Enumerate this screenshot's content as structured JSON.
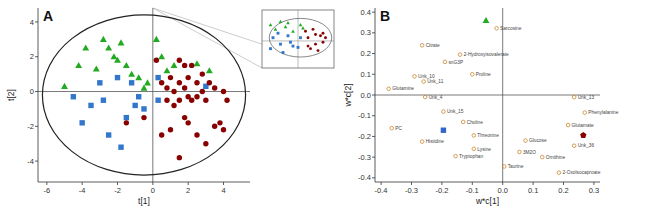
{
  "chart_data": [
    {
      "type": "scatter",
      "title": "A",
      "xlabel": "t[1]",
      "ylabel": "t[2]",
      "xlim": [
        -6.5,
        5.5
      ],
      "ylim": [
        -5.2,
        4.8
      ],
      "xticks": [
        -6,
        -4,
        -2,
        0,
        2,
        4
      ],
      "yticks": [
        -4,
        -2,
        0,
        2,
        4
      ],
      "series": [
        {
          "color": "#22aa22",
          "marker": "triangle",
          "x": [
            -5.0,
            -4.2,
            -3.8,
            -3.2,
            -2.8,
            -2.5,
            -2.2,
            -2.0,
            -1.8,
            -1.5,
            -1.2,
            -0.8,
            -0.5,
            -0.3,
            0.2,
            0.5,
            0.8,
            1.2,
            2.5,
            3.2
          ],
          "values": [
            0.3,
            1.5,
            2.5,
            1.3,
            3.0,
            2.5,
            2.0,
            1.8,
            2.8,
            1.5,
            1.0,
            0.8,
            0.2,
            0.5,
            3.0,
            2.0,
            1.2,
            1.5,
            1.6,
            1.2
          ]
        },
        {
          "color": "#3377cc",
          "marker": "square",
          "x": [
            -4.5,
            -4.0,
            -3.5,
            -3.0,
            -2.8,
            -2.5,
            -2.0,
            -1.8,
            -1.5,
            -1.2,
            -1.0,
            -0.8,
            -0.5,
            0.3,
            0.3,
            3.0
          ],
          "values": [
            -0.3,
            -1.8,
            -0.8,
            0.5,
            -0.5,
            -2.5,
            0.8,
            -3.2,
            -1.5,
            0.5,
            -0.8,
            -0.3,
            -1.0,
            0.8,
            -0.5,
            0.3
          ]
        },
        {
          "color": "#880000",
          "marker": "circle",
          "x": [
            0.2,
            0.5,
            0.8,
            0.8,
            1.0,
            1.2,
            1.2,
            1.5,
            1.5,
            1.5,
            1.8,
            1.8,
            1.8,
            2.0,
            2.0,
            2.2,
            2.2,
            2.5,
            2.5,
            2.8,
            2.8,
            3.0,
            3.2,
            3.5,
            3.8,
            4.0,
            4.2,
            0.5,
            1.0,
            1.5,
            2.0,
            2.5,
            3.0,
            3.5,
            4.0,
            -1.5,
            -0.5
          ],
          "values": [
            1.8,
            0.5,
            0.2,
            -0.5,
            0.8,
            -0.8,
            0.0,
            1.8,
            0.5,
            -0.5,
            1.5,
            0.2,
            -1.5,
            0.8,
            -0.3,
            1.5,
            -0.5,
            0.5,
            -0.3,
            1.0,
            0.0,
            -0.5,
            0.5,
            0.2,
            -1.8,
            0.0,
            -0.5,
            -2.5,
            -2.2,
            -3.8,
            -1.8,
            -2.5,
            -3.0,
            -2.0,
            -2.2,
            -1.8,
            -1.5
          ]
        }
      ],
      "ellipse": {
        "center": [
          -0.5,
          -0.2
        ],
        "width": 11.5,
        "height": 9.2
      }
    },
    {
      "type": "scatter",
      "tick_labels": false,
      "xlim": [
        -0.72,
        0.72
      ],
      "ylim": [
        -0.42,
        0.48
      ],
      "series": [
        {
          "color": "#22aa22",
          "marker": "triangle",
          "x": [
            -0.55,
            -0.35,
            -0.2,
            0.05,
            -0.1,
            -0.45,
            -0.25,
            0.1
          ],
          "values": [
            0.25,
            0.3,
            0.28,
            0.25,
            0.15,
            0.18,
            0.22,
            0.2
          ]
        },
        {
          "color": "#3377cc",
          "marker": "square",
          "x": [
            -0.5,
            -0.35,
            -0.2,
            -0.1,
            -0.55,
            -0.3,
            -0.15,
            0.0,
            -0.4,
            0.05
          ],
          "values": [
            0.05,
            -0.05,
            0.08,
            -0.08,
            -0.12,
            -0.18,
            -0.02,
            -0.1,
            0.12,
            0.05
          ]
        },
        {
          "color": "#880000",
          "marker": "circle",
          "x": [
            0.15,
            0.3,
            0.45,
            0.5,
            0.2,
            0.35,
            0.5,
            0.25,
            0.4,
            0.55,
            0.2,
            0.35
          ],
          "values": [
            0.15,
            0.18,
            0.08,
            -0.02,
            0.05,
            -0.05,
            0.12,
            -0.12,
            -0.15,
            0.05,
            -0.08,
            0.1
          ]
        }
      ],
      "ellipse": {
        "center": [
          0.05,
          0.05
        ],
        "width": 1.25,
        "height": 0.6
      }
    },
    {
      "type": "scatter",
      "title": "B",
      "xlabel": "w*c[1]",
      "ylabel": "w*c[2]",
      "xlim": [
        -0.42,
        0.32
      ],
      "ylim": [
        -0.42,
        0.42
      ],
      "xticks": [
        -0.4,
        -0.3,
        -0.2,
        -0.1,
        {
          "value": 0.0,
          "label": "0.0"
        },
        0.1,
        0.2,
        0.3
      ],
      "yticks": [
        -0.4,
        -0.3,
        -0.2,
        -0.1,
        {
          "value": 0.0,
          "label": "0.0"
        },
        0.1,
        0.2,
        0.3,
        0.4
      ],
      "series": [
        {
          "color": "#cc8833",
          "marker": "circle-open",
          "labels": [
            "Sarcosine",
            "Citrate",
            "2-Hydroxyisovalerate",
            "snG3P",
            "Unk_10",
            "Unk_11",
            "Proline",
            "Glutamine",
            "Unk_4",
            "Unk_15",
            "Choline",
            "PC",
            "Histidine",
            "Threonine",
            "Lysine",
            "Tryptophan",
            "Taurine",
            "Glucose",
            "3M2O",
            "Ornithine",
            "Unk_13",
            "Phenylalanine",
            "Glutamate",
            "Unk_36",
            "2-Oxolsocaproate"
          ],
          "x": [
            -0.02,
            -0.265,
            -0.14,
            -0.19,
            -0.29,
            -0.26,
            -0.1,
            -0.375,
            -0.255,
            -0.195,
            -0.13,
            -0.365,
            -0.265,
            -0.095,
            -0.095,
            -0.155,
            0.005,
            0.075,
            0.055,
            0.13,
            0.235,
            0.27,
            0.215,
            0.235,
            0.185
          ],
          "values": [
            0.322,
            0.24,
            0.195,
            0.16,
            0.09,
            0.065,
            0.1,
            0.03,
            -0.01,
            -0.08,
            -0.13,
            -0.16,
            -0.225,
            -0.195,
            -0.26,
            -0.295,
            -0.345,
            -0.22,
            -0.275,
            -0.3,
            -0.01,
            -0.085,
            -0.145,
            -0.245,
            -0.375
          ]
        },
        {
          "color": "#22aa22",
          "marker": "triangle",
          "x": [
            -0.055
          ],
          "values": [
            0.36
          ]
        },
        {
          "color": "#3366cc",
          "marker": "square",
          "x": [
            -0.195
          ],
          "values": [
            -0.17
          ]
        },
        {
          "color": "#880000",
          "marker": "pentagon",
          "x": [
            0.265
          ],
          "values": [
            -0.195
          ]
        }
      ]
    }
  ]
}
